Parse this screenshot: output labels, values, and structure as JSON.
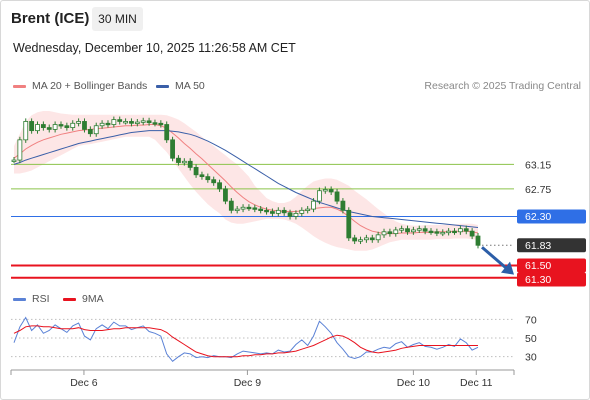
{
  "header": {
    "instrument": "Brent (ICE)",
    "interval": "30 MIN",
    "datetime": "Wednesday, December 10, 2025 11:26:58 AM CET"
  },
  "legend": {
    "ma20_label": "MA 20 + Bollinger Bands",
    "ma50_label": "MA 50",
    "credit": "Research © 2025 Trading Central",
    "rsi_label": "RSI",
    "ma9_label": "9MA"
  },
  "colors": {
    "ma20": "#f08080",
    "ma50": "#3a5fa8",
    "bollinger_fill": "#fde3e3",
    "support": "#e8131f",
    "pivot": "#2f6fe6",
    "resistance": "#8bc34a",
    "last_price": "#333333",
    "rsi": "#5b82d6",
    "rsi_ma": "#e8131f",
    "candle": "#2e7d32"
  },
  "chart_data": [
    {
      "type": "candlestick",
      "ylim": [
        61.1,
        64.2
      ],
      "x_ticks": [
        "Dec 6",
        "Dec 9",
        "Dec 10",
        "Dec 11"
      ],
      "levels": [
        {
          "label": "63.15",
          "value": 63.15,
          "kind": "resistance"
        },
        {
          "label": "62.75",
          "value": 62.75,
          "kind": "resistance"
        },
        {
          "label": "62.30",
          "value": 62.3,
          "kind": "pivot"
        },
        {
          "label": "61.83",
          "value": 61.83,
          "kind": "last"
        },
        {
          "label": "61.50",
          "value": 61.5,
          "kind": "support"
        },
        {
          "label": "61.30",
          "value": 61.3,
          "kind": "support"
        }
      ],
      "close": [
        63.22,
        63.55,
        63.85,
        63.7,
        63.8,
        63.75,
        63.72,
        63.8,
        63.78,
        63.75,
        63.82,
        63.85,
        63.72,
        63.65,
        63.78,
        63.82,
        63.8,
        63.88,
        63.85,
        63.85,
        63.82,
        63.84,
        63.86,
        63.83,
        63.82,
        63.8,
        63.55,
        63.25,
        63.18,
        63.2,
        63.1,
        62.98,
        62.95,
        62.9,
        62.85,
        62.75,
        62.55,
        62.4,
        62.42,
        62.45,
        62.44,
        62.42,
        62.4,
        62.38,
        62.35,
        62.4,
        62.36,
        62.3,
        62.35,
        62.4,
        62.42,
        62.55,
        62.72,
        62.74,
        62.7,
        62.55,
        62.4,
        61.95,
        61.9,
        61.92,
        61.95,
        61.92,
        62.0,
        62.05,
        62.02,
        62.08,
        62.1,
        62.05,
        62.08,
        62.1,
        62.06,
        62.05,
        62.03,
        62.04,
        62.06,
        62.05,
        62.1,
        62.06,
        61.98,
        61.83
      ],
      "ma20": [
        63.25,
        63.32,
        63.4,
        63.46,
        63.51,
        63.55,
        63.58,
        63.61,
        63.64,
        63.66,
        63.68,
        63.7,
        63.71,
        63.72,
        63.73,
        63.74,
        63.75,
        63.76,
        63.77,
        63.78,
        63.78,
        63.79,
        63.79,
        63.8,
        63.8,
        63.78,
        63.74,
        63.66,
        63.58,
        63.49,
        63.41,
        63.32,
        63.24,
        63.15,
        63.06,
        62.97,
        62.88,
        62.78,
        62.69,
        62.61,
        62.54,
        62.49,
        62.45,
        62.42,
        62.4,
        62.39,
        62.38,
        62.38,
        62.38,
        62.39,
        62.41,
        62.43,
        62.44,
        62.45,
        62.45,
        62.42,
        62.37,
        62.3,
        62.22,
        62.15,
        62.1,
        62.06,
        62.04,
        62.02,
        62.02,
        62.02,
        62.03,
        62.03,
        62.03,
        62.04,
        62.04,
        62.04,
        62.05,
        62.05,
        62.05,
        62.06,
        62.06,
        62.06,
        62.05,
        62.03
      ],
      "bb_upper": [
        63.45,
        63.65,
        63.85,
        63.95,
        64.0,
        64.02,
        64.02,
        64.0,
        63.98,
        63.97,
        63.96,
        63.96,
        63.96,
        63.96,
        63.96,
        63.96,
        63.96,
        63.96,
        63.96,
        63.96,
        63.96,
        63.96,
        63.96,
        63.96,
        63.96,
        63.96,
        63.95,
        63.92,
        63.88,
        63.82,
        63.75,
        63.68,
        63.6,
        63.52,
        63.45,
        63.37,
        63.3,
        63.22,
        63.15,
        63.05,
        62.95,
        62.8,
        62.7,
        62.6,
        62.55,
        62.52,
        62.52,
        62.55,
        62.62,
        62.72,
        62.8,
        62.87,
        62.9,
        62.92,
        62.92,
        62.9,
        62.85,
        62.8,
        62.72,
        62.65,
        62.58,
        62.5,
        62.42,
        62.35,
        62.28,
        62.22,
        62.18,
        62.16,
        62.15,
        62.15,
        62.16,
        62.16,
        62.16,
        62.16,
        62.17,
        62.17,
        62.18,
        62.18,
        62.18,
        62.16
      ],
      "bb_lower": [
        63.0,
        63.0,
        63.02,
        63.05,
        63.1,
        63.15,
        63.2,
        63.25,
        63.3,
        63.35,
        63.4,
        63.45,
        63.47,
        63.48,
        63.5,
        63.52,
        63.54,
        63.56,
        63.58,
        63.6,
        63.6,
        63.6,
        63.6,
        63.6,
        63.55,
        63.45,
        63.35,
        63.22,
        63.08,
        62.95,
        62.82,
        62.7,
        62.6,
        62.5,
        62.42,
        62.35,
        62.25,
        62.2,
        62.18,
        62.18,
        62.2,
        62.22,
        62.24,
        62.26,
        62.26,
        62.26,
        62.25,
        62.22,
        62.18,
        62.12,
        62.05,
        61.98,
        61.92,
        61.87,
        61.83,
        61.8,
        61.78,
        61.76,
        61.74,
        61.74,
        61.74,
        61.76,
        61.8,
        61.84,
        61.88,
        61.9,
        61.92,
        61.92,
        61.92,
        61.92,
        61.92,
        61.92,
        61.93,
        61.93,
        61.93,
        61.94,
        61.94,
        61.94,
        61.93,
        61.92
      ],
      "ma50": [
        63.15,
        63.18,
        63.22,
        63.25,
        63.28,
        63.31,
        63.34,
        63.37,
        63.4,
        63.43,
        63.46,
        63.49,
        63.51,
        63.53,
        63.55,
        63.57,
        63.59,
        63.61,
        63.63,
        63.65,
        63.67,
        63.68,
        63.69,
        63.7,
        63.7,
        63.7,
        63.7,
        63.69,
        63.68,
        63.66,
        63.64,
        63.61,
        63.57,
        63.53,
        63.48,
        63.43,
        63.38,
        63.32,
        63.26,
        63.2,
        63.14,
        63.08,
        63.02,
        62.96,
        62.9,
        62.84,
        62.79,
        62.74,
        62.69,
        62.65,
        62.61,
        62.57,
        62.53,
        62.5,
        62.47,
        62.44,
        62.41,
        62.38,
        62.36,
        62.34,
        62.32,
        62.3,
        62.29,
        62.28,
        62.27,
        62.26,
        62.25,
        62.24,
        62.23,
        62.22,
        62.21,
        62.2,
        62.19,
        62.18,
        62.17,
        62.16,
        62.15,
        62.14,
        62.13,
        62.12
      ],
      "forecast_arrow": {
        "from": 61.83,
        "to": 61.4
      }
    },
    {
      "type": "line",
      "title": "RSI",
      "ylim": [
        20,
        80
      ],
      "y_ticks": [
        70,
        50,
        30
      ],
      "series": [
        {
          "name": "RSI",
          "values": [
            45,
            62,
            72,
            58,
            64,
            55,
            58,
            64,
            60,
            56,
            63,
            66,
            52,
            48,
            60,
            64,
            60,
            67,
            63,
            63,
            59,
            61,
            63,
            57,
            55,
            52,
            33,
            25,
            30,
            34,
            33,
            29,
            30,
            29,
            31,
            30,
            30,
            29,
            33,
            36,
            35,
            34,
            33,
            34,
            33,
            37,
            35,
            36,
            43,
            48,
            42,
            52,
            68,
            62,
            55,
            45,
            38,
            30,
            28,
            30,
            35,
            35,
            38,
            40,
            39,
            44,
            46,
            40,
            43,
            45,
            41,
            40,
            38,
            40,
            43,
            41,
            49,
            45,
            37,
            40
          ]
        },
        {
          "name": "9MA",
          "values": [
            55,
            58,
            62,
            63,
            63,
            62,
            62,
            61,
            60,
            60,
            60,
            61,
            59,
            58,
            58,
            58,
            59,
            60,
            60,
            61,
            61,
            61,
            61,
            61,
            60,
            59,
            56,
            51,
            47,
            43,
            39,
            35,
            33,
            31,
            30,
            30,
            30,
            30,
            30,
            31,
            31,
            32,
            32,
            33,
            33,
            34,
            34,
            35,
            36,
            38,
            40,
            42,
            45,
            48,
            51,
            53,
            52,
            49,
            45,
            40,
            37,
            35,
            34,
            35,
            36,
            37,
            39,
            40,
            41,
            42,
            42,
            42,
            42,
            42,
            42,
            42,
            42,
            42,
            42,
            42
          ]
        }
      ]
    }
  ]
}
